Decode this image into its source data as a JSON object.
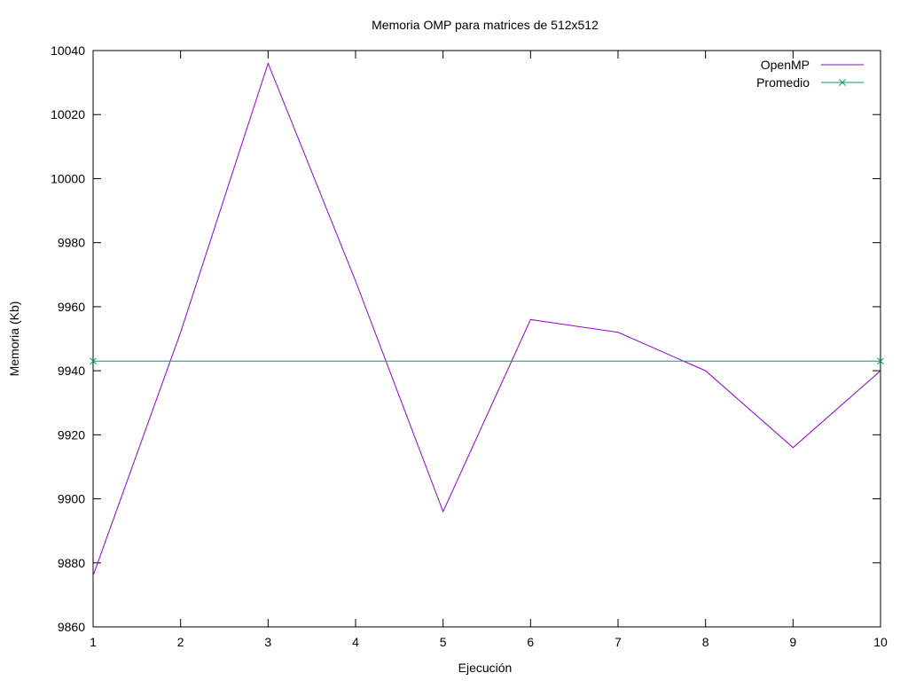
{
  "chart_data": {
    "type": "line",
    "title": "Memoria OMP para matrices de 512x512",
    "xlabel": "Ejecución",
    "ylabel": "Memoria (Kb)",
    "xlim": [
      1,
      10
    ],
    "ylim": [
      9860,
      10040
    ],
    "xticks": [
      1,
      2,
      3,
      4,
      5,
      6,
      7,
      8,
      9,
      10
    ],
    "yticks": [
      9860,
      9880,
      9900,
      9920,
      9940,
      9960,
      9980,
      10000,
      10020,
      10040
    ],
    "grid": false,
    "legend_position": "top-right",
    "series": [
      {
        "name": "OpenMP",
        "color": "#9400d3",
        "marker": "none",
        "x": [
          1,
          2,
          3,
          4,
          5,
          6,
          7,
          8,
          9,
          10
        ],
        "y": [
          9876,
          9952,
          10036,
          9968,
          9896,
          9956,
          9952,
          9940,
          9916,
          9940
        ]
      },
      {
        "name": "Promedio",
        "color": "#009e73",
        "marker": "x",
        "x": [
          1,
          10
        ],
        "y": [
          9943,
          9943
        ]
      }
    ]
  }
}
